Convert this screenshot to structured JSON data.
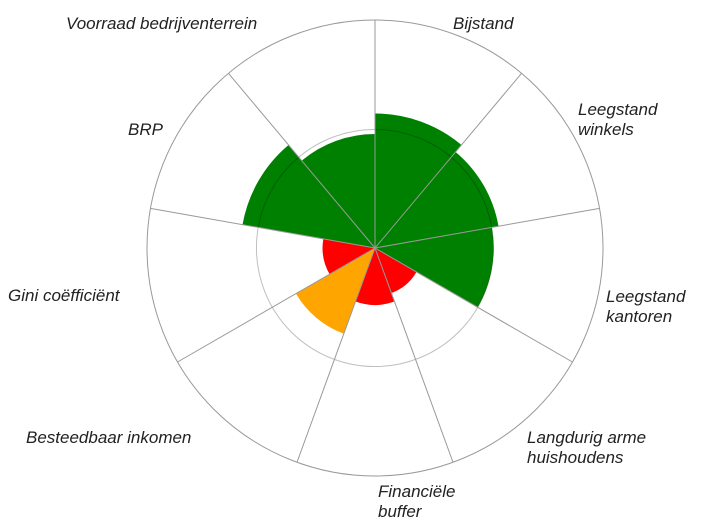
{
  "chart_data": {
    "type": "rose",
    "rlim": [
      0,
      100
    ],
    "categories": [
      "Bijstand",
      "Leegstand winkels",
      "Leegstand kantoren",
      "Langdurig arme huishoudens",
      "Financiële buffer",
      "Besteedbaar inkomen",
      "Gini coëfficiënt",
      "BRP",
      "Voorraad bedrijventerrein"
    ],
    "values": [
      59,
      55,
      52,
      21,
      25,
      40,
      23,
      59,
      50
    ],
    "colors": [
      "#008000",
      "#008000",
      "#008000",
      "#ff0000",
      "#ff0000",
      "#ffa500",
      "#ff0000",
      "#008000",
      "#008000"
    ]
  }
}
